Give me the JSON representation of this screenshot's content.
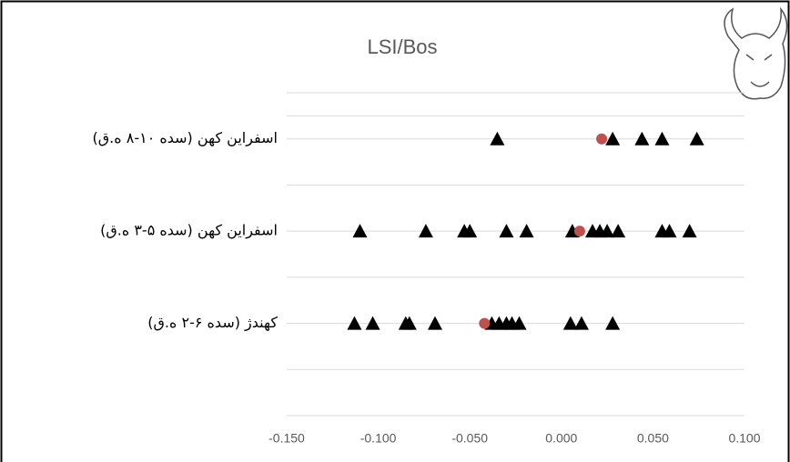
{
  "chart_data": {
    "type": "scatter",
    "title": "LSI/Bos",
    "xlim": [
      -0.15,
      0.1
    ],
    "xticks": [
      {
        "value": -0.15,
        "label": "-0.150"
      },
      {
        "value": -0.1,
        "label": "-0.100"
      },
      {
        "value": -0.05,
        "label": "-0.050"
      },
      {
        "value": 0,
        "label": "0.000"
      },
      {
        "value": 0.05,
        "label": "0.050"
      },
      {
        "value": 0.1,
        "label": "0.100"
      }
    ],
    "ylim": [
      0,
      3.5
    ],
    "yticks": [
      {
        "value": 1,
        "label": "کهندژ (سده ۶-۲ ه.ق)"
      },
      {
        "value": 2,
        "label": "اسفراین کهن (سده ۵-۳ ه.ق)"
      },
      {
        "value": 3,
        "label": "اسفراین کهن (سده ۱۰-۸ ه.ق)"
      }
    ],
    "grid": true,
    "series": [
      {
        "marker": "triangle",
        "color": "#000000",
        "x": [
          -0.035,
          0.028,
          0.044,
          0.055,
          0.074,
          -0.11,
          -0.074,
          -0.053,
          -0.05,
          -0.03,
          -0.019,
          0.006,
          0.017,
          0.021,
          0.025,
          0.031,
          0.055,
          0.059,
          0.07,
          -0.113,
          -0.103,
          -0.085,
          -0.083,
          -0.069,
          -0.038,
          -0.034,
          -0.03,
          -0.027,
          -0.023,
          0.005,
          0.011,
          0.028
        ],
        "y": [
          3,
          3,
          3,
          3,
          3,
          2,
          2,
          2,
          2,
          2,
          2,
          2,
          2,
          2,
          2,
          2,
          2,
          2,
          2,
          1,
          1,
          1,
          1,
          1,
          1,
          1,
          1,
          1,
          1,
          1,
          1,
          1
        ]
      },
      {
        "marker": "circle",
        "color": "#c0504d",
        "x": [
          0.022,
          0.01,
          -0.042
        ],
        "y": [
          3,
          2,
          1
        ]
      }
    ]
  }
}
